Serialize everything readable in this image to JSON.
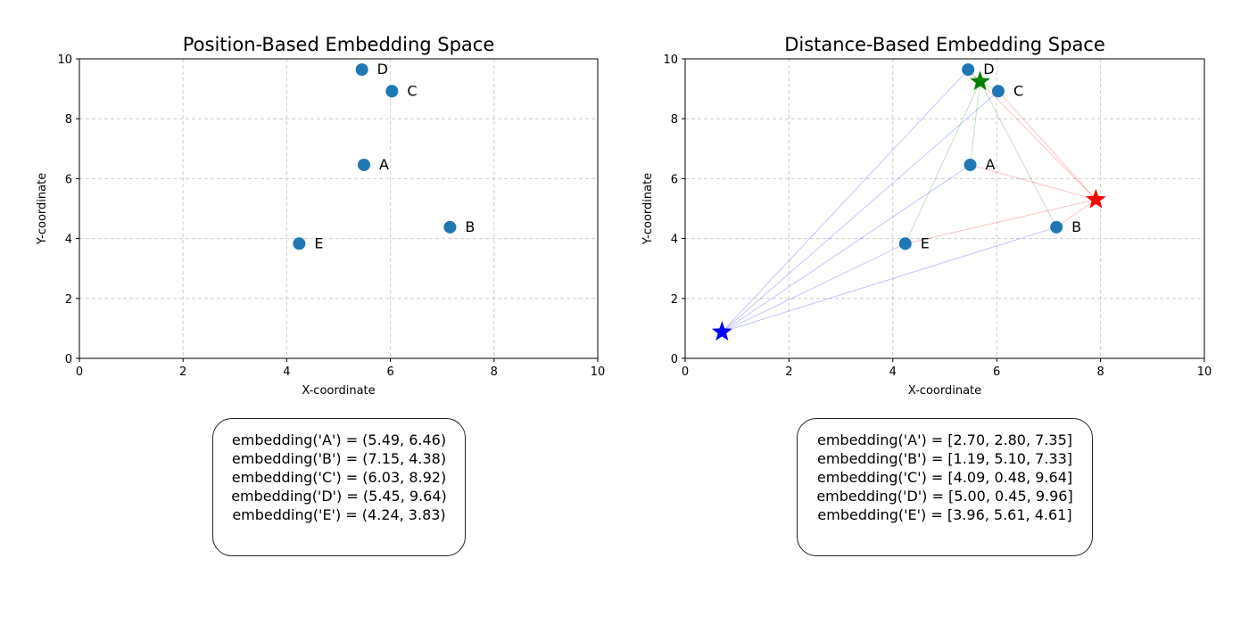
{
  "chart_data": [
    {
      "type": "scatter",
      "title": "Position-Based Embedding Space",
      "xlabel": "X-coordinate",
      "ylabel": "Y-coordinate",
      "xlim": [
        0,
        10
      ],
      "ylim": [
        0,
        10
      ],
      "xticks": [
        0,
        2,
        4,
        6,
        8,
        10
      ],
      "yticks": [
        0,
        2,
        4,
        6,
        8,
        10
      ],
      "grid": true,
      "point_color": "#1f77b4",
      "points": [
        {
          "label": "A",
          "x": 5.49,
          "y": 6.46
        },
        {
          "label": "B",
          "x": 7.15,
          "y": 4.38
        },
        {
          "label": "C",
          "x": 6.03,
          "y": 8.92
        },
        {
          "label": "D",
          "x": 5.45,
          "y": 9.64
        },
        {
          "label": "E",
          "x": 4.24,
          "y": 3.83
        }
      ]
    },
    {
      "type": "scatter",
      "title": "Distance-Based Embedding Space",
      "xlabel": "X-coordinate",
      "ylabel": "Y-coordinate",
      "xlim": [
        0,
        10
      ],
      "ylim": [
        0,
        10
      ],
      "xticks": [
        0,
        2,
        4,
        6,
        8,
        10
      ],
      "yticks": [
        0,
        2,
        4,
        6,
        8,
        10
      ],
      "grid": true,
      "point_color": "#1f77b4",
      "points": [
        {
          "label": "A",
          "x": 5.49,
          "y": 6.46
        },
        {
          "label": "B",
          "x": 7.15,
          "y": 4.38
        },
        {
          "label": "C",
          "x": 6.03,
          "y": 8.92
        },
        {
          "label": "D",
          "x": 5.45,
          "y": 9.64
        },
        {
          "label": "E",
          "x": 4.24,
          "y": 3.83
        }
      ],
      "anchors": [
        {
          "name": "blue",
          "color": "#0000ff",
          "x": 0.71,
          "y": 0.88
        },
        {
          "name": "red",
          "color": "#ff0000",
          "x": 7.91,
          "y": 5.3
        },
        {
          "name": "green",
          "color": "#008000",
          "x": 5.68,
          "y": 9.24
        }
      ]
    }
  ],
  "embeddings_left": [
    "embedding('A') = (5.49, 6.46)",
    "embedding('B') = (7.15, 4.38)",
    "embedding('C') = (6.03, 8.92)",
    "embedding('D') = (5.45, 9.64)",
    "embedding('E') = (4.24, 3.83)"
  ],
  "embeddings_right": [
    "embedding('A') = [2.70, 2.80, 7.35]",
    "embedding('B') = [1.19, 5.10, 7.33]",
    "embedding('C') = [4.09, 0.48, 9.64]",
    "embedding('D') = [5.00, 0.45, 9.96]",
    "embedding('E') = [3.96, 5.61, 4.61]"
  ]
}
